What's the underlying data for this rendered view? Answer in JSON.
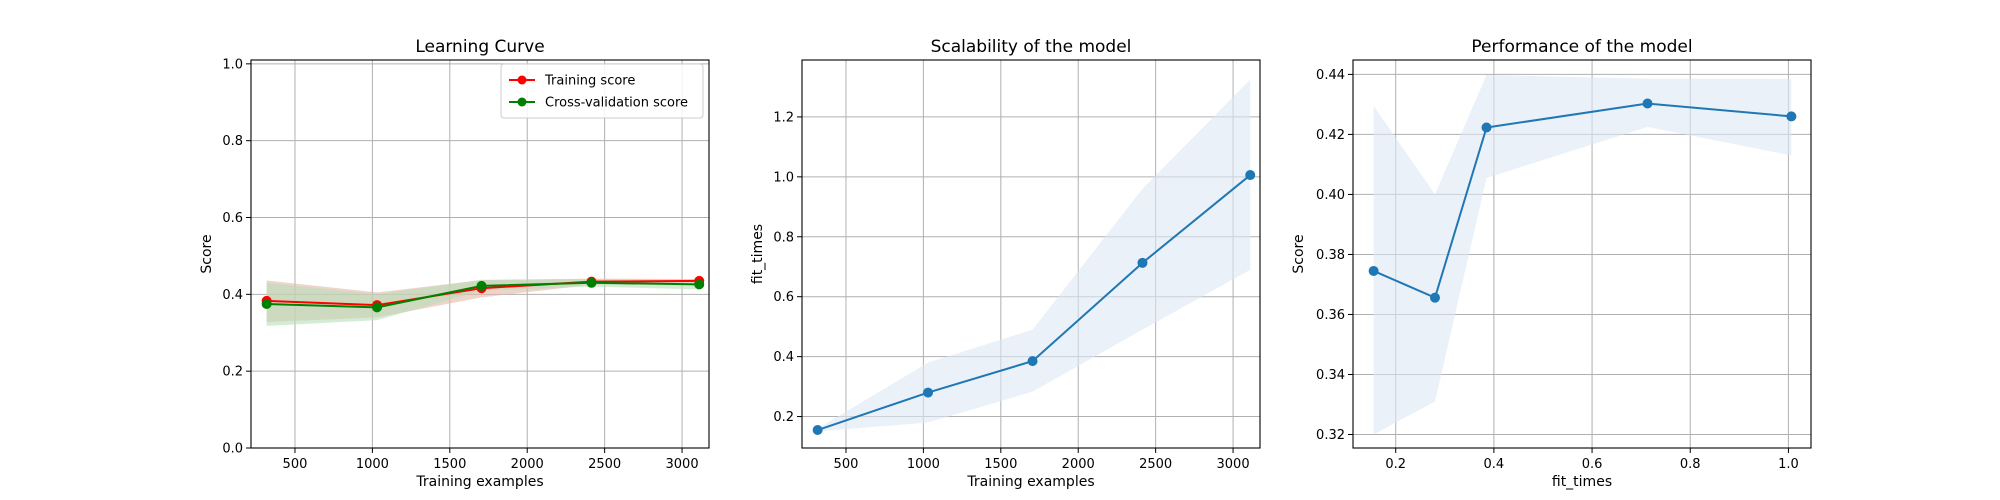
{
  "chart_data": [
    {
      "type": "line",
      "title": "Learning Curve",
      "xlabel": "Training examples",
      "ylabel": "Score",
      "xlim": [
        216,
        3174
      ],
      "ylim": [
        0.0,
        1.01
      ],
      "xticks": [
        500,
        1000,
        1500,
        2000,
        2500,
        3000
      ],
      "yticks": [
        0.0,
        0.2,
        0.4,
        0.6,
        0.8,
        1.0
      ],
      "xtick_labels": [
        "500",
        "1000",
        "1500",
        "2000",
        "2500",
        "3000"
      ],
      "ytick_labels": [
        "0.0",
        "0.2",
        "0.4",
        "0.6",
        "0.8",
        "1.0"
      ],
      "grid": true,
      "legend": "top-right",
      "x": [
        317,
        1030,
        1705,
        2415,
        3111
      ],
      "series": [
        {
          "name": "Training score",
          "color": "#ff0000",
          "values": [
            0.383,
            0.372,
            0.416,
            0.433,
            0.435
          ],
          "band_low": [
            0.328,
            0.34,
            0.392,
            0.425,
            0.43
          ],
          "band_high": [
            0.436,
            0.405,
            0.437,
            0.441,
            0.44
          ],
          "band_color": "#e2b8a8"
        },
        {
          "name": "Cross-validation score",
          "color": "#008000",
          "values": [
            0.375,
            0.366,
            0.422,
            0.43,
            0.426
          ],
          "band_low": [
            0.318,
            0.333,
            0.41,
            0.42,
            0.413
          ],
          "band_high": [
            0.43,
            0.4,
            0.438,
            0.44,
            0.438
          ],
          "band_color": "#b8ddb8"
        }
      ]
    },
    {
      "type": "line",
      "title": "Scalability of the model",
      "xlabel": "Training examples",
      "ylabel": "fit_times",
      "xlim": [
        216,
        3174
      ],
      "ylim": [
        0.095,
        1.39
      ],
      "xticks": [
        500,
        1000,
        1500,
        2000,
        2500,
        3000
      ],
      "yticks": [
        0.2,
        0.4,
        0.6,
        0.8,
        1.0,
        1.2
      ],
      "xtick_labels": [
        "500",
        "1000",
        "1500",
        "2000",
        "2500",
        "3000"
      ],
      "ytick_labels": [
        "0.2",
        "0.4",
        "0.6",
        "0.8",
        "1.0",
        "1.2"
      ],
      "grid": true,
      "x": [
        317,
        1030,
        1705,
        2415,
        3111
      ],
      "series": [
        {
          "color": "#1f77b4",
          "values": [
            0.155,
            0.28,
            0.385,
            0.713,
            1.006
          ],
          "band_low": [
            0.15,
            0.18,
            0.283,
            0.49,
            0.69
          ],
          "band_high": [
            0.16,
            0.38,
            0.49,
            0.96,
            1.325
          ],
          "band_color": "#dce8f4"
        }
      ]
    },
    {
      "type": "line",
      "title": "Performance of the model",
      "xlabel": "fit_times",
      "ylabel": "Score",
      "xlim": [
        0.113,
        1.046
      ],
      "ylim": [
        0.3155,
        0.4448
      ],
      "xticks": [
        0.2,
        0.4,
        0.6,
        0.8,
        1.0
      ],
      "yticks": [
        0.32,
        0.34,
        0.36,
        0.38,
        0.4,
        0.42,
        0.44
      ],
      "xtick_labels": [
        "0.2",
        "0.4",
        "0.6",
        "0.8",
        "1.0"
      ],
      "ytick_labels": [
        "0.32",
        "0.34",
        "0.36",
        "0.38",
        "0.40",
        "0.42",
        "0.44"
      ],
      "grid": true,
      "x": [
        0.155,
        0.28,
        0.385,
        0.713,
        1.006
      ],
      "series": [
        {
          "color": "#1f77b4",
          "values": [
            0.3745,
            0.3656,
            0.4223,
            0.4303,
            0.426
          ],
          "band_low": [
            0.32,
            0.331,
            0.4055,
            0.4225,
            0.413
          ],
          "band_high": [
            0.4295,
            0.4,
            0.4398,
            0.4386,
            0.4385
          ],
          "band_color": "#dce8f4"
        }
      ]
    }
  ]
}
